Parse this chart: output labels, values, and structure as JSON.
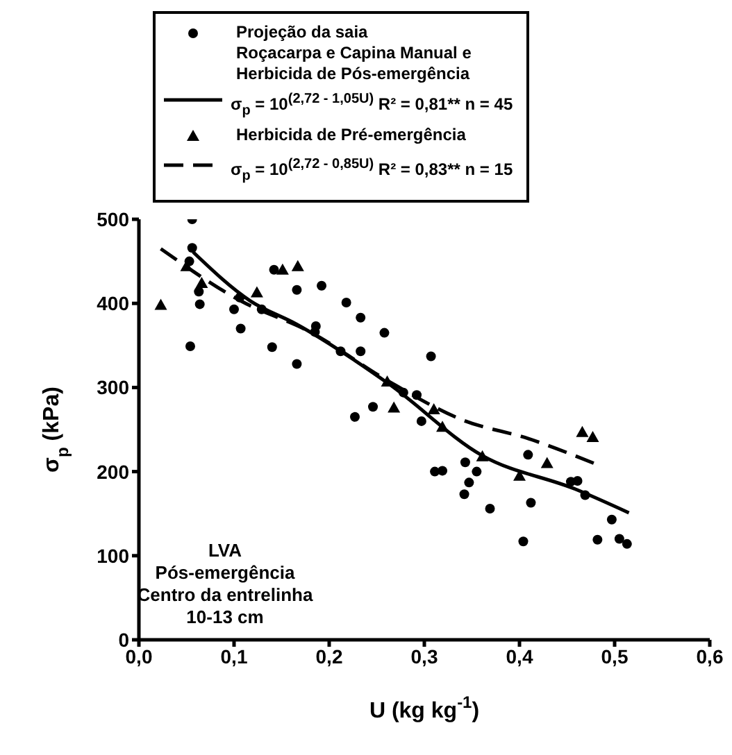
{
  "chart_data": {
    "type": "scatter",
    "xlabel": "U (kg kg$^{-1}$)",
    "ylabel": "σ$_{p}$ (kPa)",
    "xlim": [
      0,
      0.6
    ],
    "ylim": [
      0,
      500
    ],
    "xticks": [
      {
        "value": 0,
        "label": "0,0"
      },
      {
        "value": 0.1,
        "label": "0,1"
      },
      {
        "value": 0.2,
        "label": "0,2"
      },
      {
        "value": 0.3,
        "label": "0,3"
      },
      {
        "value": 0.4,
        "label": "0,4"
      },
      {
        "value": 0.5,
        "label": "0,5"
      },
      {
        "value": 0.6,
        "label": "0,6"
      }
    ],
    "yticks": [
      0,
      100,
      200,
      300,
      400,
      500
    ],
    "legend": "top",
    "annotations": [
      "LVA\nPós-emergência\nCentro da entrelinha\n10-13 cm"
    ],
    "series": [
      {
        "name": "Projeção da saia\nRoçacarpa e Capina Manual e\nHerbicida de Pós-emergência",
        "type": "scatter",
        "marker": "circle",
        "color": "#000000",
        "x": [
          0.056,
          0.056,
          0.053,
          0.063,
          0.064,
          0.054,
          0.1,
          0.106,
          0.107,
          0.129,
          0.14,
          0.142,
          0.166,
          0.166,
          0.186,
          0.185,
          0.192,
          0.212,
          0.218,
          0.227,
          0.233,
          0.233,
          0.246,
          0.258,
          0.278,
          0.292,
          0.297,
          0.307,
          0.311,
          0.319,
          0.343,
          0.347,
          0.355,
          0.342,
          0.369,
          0.404,
          0.409,
          0.412,
          0.454,
          0.461,
          0.469,
          0.482,
          0.497,
          0.505,
          0.513
        ],
        "values": [
          500,
          466,
          450,
          414,
          399,
          349,
          393,
          407,
          370,
          393,
          348,
          440,
          416,
          328,
          373,
          366,
          421,
          343,
          401,
          265,
          383,
          343,
          277,
          365,
          294,
          291,
          260,
          337,
          200,
          201,
          211,
          187,
          200,
          173,
          156,
          117,
          220,
          163,
          188,
          189,
          172,
          119,
          143,
          120,
          114
        ]
      },
      {
        "name": "σ$_{p}$ = 10$^{(2,72 - 1,05U)}$  R² = 0,81**  n = 45",
        "type": "line",
        "marker": "none",
        "line_style": "solid",
        "color": "#000000",
        "x": [
          0.057,
          0.117,
          0.166,
          0.263,
          0.361,
          0.459,
          0.515
        ],
        "values": [
          461,
          403,
          375,
          304,
          219,
          179,
          151
        ]
      },
      {
        "name": "Herbicida de Pré-emergência",
        "type": "scatter",
        "marker": "triangle",
        "color": "#000000",
        "x": [
          0.023,
          0.05,
          0.066,
          0.124,
          0.151,
          0.167,
          0.261,
          0.268,
          0.31,
          0.319,
          0.361,
          0.4,
          0.429,
          0.466,
          0.477
        ],
        "values": [
          398,
          444,
          424,
          413,
          440,
          444,
          307,
          276,
          274,
          253,
          218,
          195,
          210,
          247,
          241
        ]
      },
      {
        "name": "σ$_{p}$ = 10$^{(2,72 - 0,85U)}$  R² = 0,83**  n = 15",
        "type": "line",
        "marker": "none",
        "line_style": "dashed",
        "color": "#000000",
        "x": [
          0.023,
          0.107,
          0.18,
          0.263,
          0.341,
          0.41,
          0.478
        ],
        "values": [
          465,
          403,
          366,
          307,
          261,
          239,
          210
        ]
      }
    ]
  }
}
